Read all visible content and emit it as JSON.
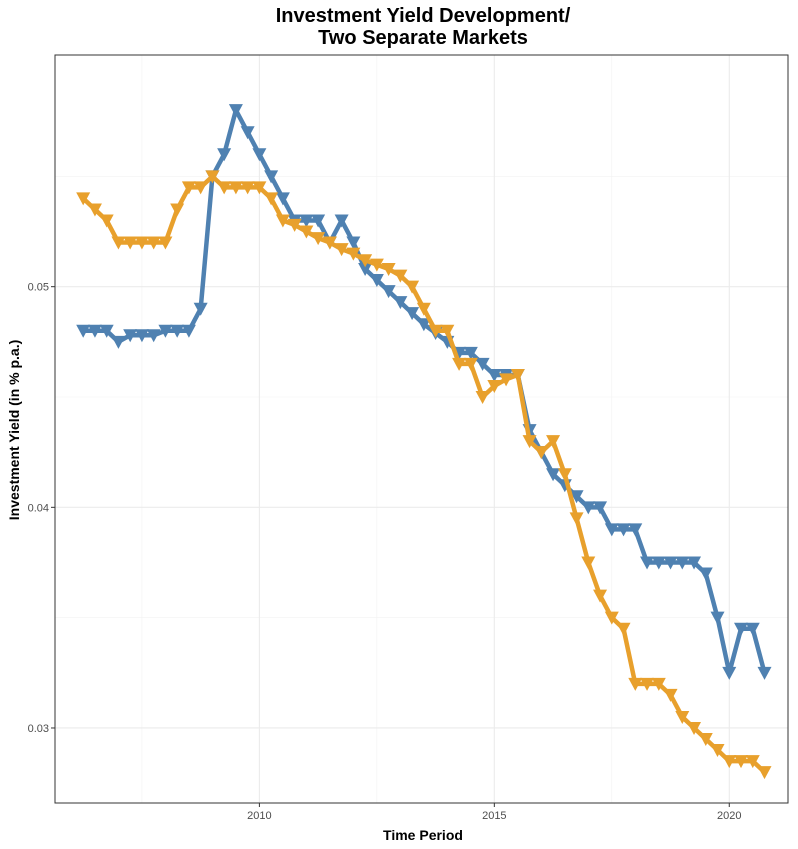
{
  "chart_data": {
    "type": "line",
    "title": [
      "Investment Yield Development/",
      "Two Separate Markets"
    ],
    "xlabel": "Time Period",
    "ylabel": "Investment Yield (in % p.a.)",
    "xlim": [
      2005.65,
      2021.25
    ],
    "ylim": [
      0.0266,
      0.0605
    ],
    "x_ticks": [
      2010,
      2015,
      2020
    ],
    "x_tick_labels": [
      "2010",
      "2015",
      "2020"
    ],
    "y_ticks": [
      0.03,
      0.04,
      0.05
    ],
    "y_tick_labels": [
      "0.03",
      "0.04",
      "0.05"
    ],
    "grid": true,
    "legend": "none",
    "marker": "triangle-down",
    "series": [
      {
        "color": "#4f81b1",
        "x": [
          2006.25,
          2006.5,
          2006.75,
          2007.0,
          2007.25,
          2007.5,
          2007.75,
          2008.0,
          2008.25,
          2008.5,
          2008.75,
          2009.0,
          2009.25,
          2009.5,
          2009.75,
          2010.0,
          2010.25,
          2010.5,
          2010.75,
          2011.0,
          2011.25,
          2011.5,
          2011.75,
          2012.0,
          2012.25,
          2012.5,
          2012.75,
          2013.0,
          2013.25,
          2013.5,
          2013.75,
          2014.0,
          2014.25,
          2014.5,
          2014.75,
          2015.0,
          2015.25,
          2015.5,
          2015.75,
          2016.0,
          2016.25,
          2016.5,
          2016.75,
          2017.0,
          2017.25,
          2017.5,
          2017.75,
          2018.0,
          2018.25,
          2018.5,
          2018.75,
          2019.0,
          2019.25,
          2019.5,
          2019.75,
          2020.0,
          2020.25,
          2020.5,
          2020.75
        ],
        "values": [
          0.048,
          0.048,
          0.048,
          0.0475,
          0.0478,
          0.0478,
          0.0478,
          0.048,
          0.048,
          0.048,
          0.049,
          0.055,
          0.056,
          0.058,
          0.057,
          0.056,
          0.055,
          0.054,
          0.053,
          0.053,
          0.053,
          0.052,
          0.053,
          0.052,
          0.0508,
          0.0503,
          0.0498,
          0.0493,
          0.0488,
          0.0483,
          0.0479,
          0.0475,
          0.047,
          0.047,
          0.0465,
          0.046,
          0.046,
          0.046,
          0.0435,
          0.0425,
          0.0415,
          0.041,
          0.0405,
          0.04,
          0.04,
          0.039,
          0.039,
          0.039,
          0.0375,
          0.0375,
          0.0375,
          0.0375,
          0.0375,
          0.037,
          0.035,
          0.0325,
          0.0345,
          0.0345,
          0.0325
        ]
      },
      {
        "color": "#e8a02c",
        "x": [
          2006.25,
          2006.5,
          2006.75,
          2007.0,
          2007.25,
          2007.5,
          2007.75,
          2008.0,
          2008.25,
          2008.5,
          2008.75,
          2009.0,
          2009.25,
          2009.5,
          2009.75,
          2010.0,
          2010.25,
          2010.5,
          2010.75,
          2011.0,
          2011.25,
          2011.5,
          2011.75,
          2012.0,
          2012.25,
          2012.5,
          2012.75,
          2013.0,
          2013.25,
          2013.5,
          2013.75,
          2014.0,
          2014.25,
          2014.5,
          2014.75,
          2015.0,
          2015.25,
          2015.5,
          2015.75,
          2016.0,
          2016.25,
          2016.5,
          2016.75,
          2017.0,
          2017.25,
          2017.5,
          2017.75,
          2018.0,
          2018.25,
          2018.5,
          2018.75,
          2019.0,
          2019.25,
          2019.5,
          2019.75,
          2020.0,
          2020.25,
          2020.5,
          2020.75
        ],
        "values": [
          0.054,
          0.0535,
          0.053,
          0.052,
          0.052,
          0.052,
          0.052,
          0.052,
          0.0535,
          0.0545,
          0.0545,
          0.055,
          0.0545,
          0.0545,
          0.0545,
          0.0545,
          0.054,
          0.053,
          0.0528,
          0.0525,
          0.0522,
          0.052,
          0.0517,
          0.0515,
          0.0512,
          0.051,
          0.0508,
          0.0505,
          0.05,
          0.049,
          0.048,
          0.048,
          0.0465,
          0.0465,
          0.045,
          0.0455,
          0.0458,
          0.046,
          0.043,
          0.0425,
          0.043,
          0.0415,
          0.0395,
          0.0375,
          0.036,
          0.035,
          0.0345,
          0.032,
          0.032,
          0.032,
          0.0315,
          0.0305,
          0.03,
          0.0295,
          0.029,
          0.0285,
          0.0285,
          0.0285,
          0.028
        ]
      }
    ]
  }
}
